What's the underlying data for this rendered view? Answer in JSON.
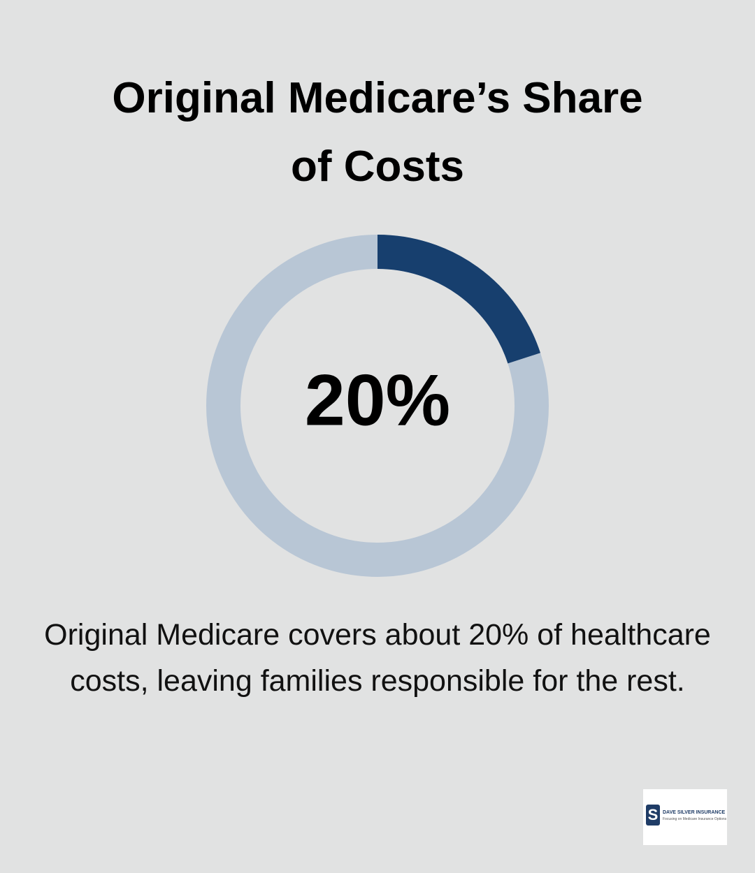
{
  "chart_data": {
    "type": "donut",
    "title": "Original Medicare’s Share of Costs",
    "values": [
      20
    ],
    "value_labels": [
      "20%"
    ],
    "color": "#173f6e",
    "track_color": "#b8c6d5",
    "caption": "Original Medicare covers about 20% of healthcare costs, leaving families responsible for the rest."
  },
  "logo": {
    "name": "DAVE SILVER INSURANCE",
    "tagline": "Focusing on Medicare Insurance Options"
  }
}
